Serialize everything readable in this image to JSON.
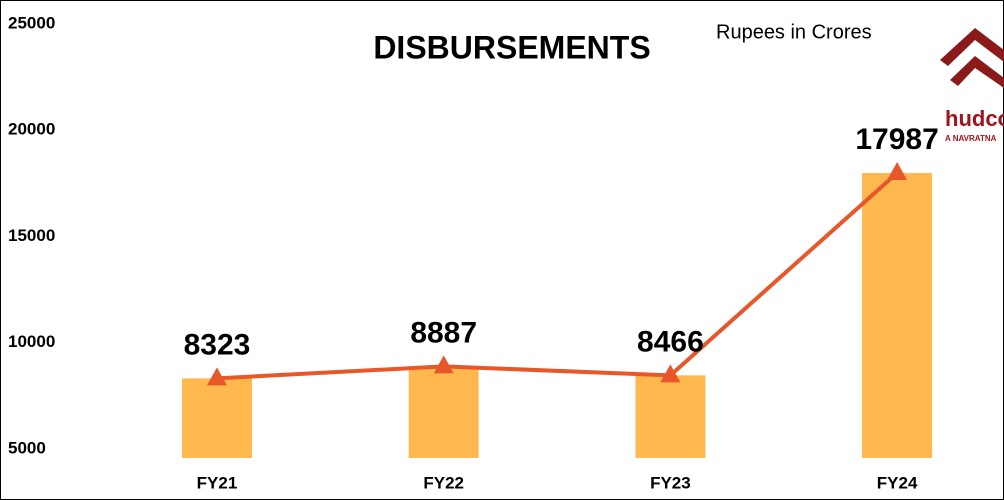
{
  "chart_data": {
    "type": "bar",
    "title": "DISBURSEMENTS",
    "subtitle": "Rupees in Crores",
    "categories": [
      "FY21",
      "FY22",
      "FY23",
      "FY24"
    ],
    "values": [
      8323,
      8887,
      8466,
      17987
    ],
    "color": "#ffb84d",
    "line_overlay": true,
    "line_color": "#e8572a",
    "ylim": [
      5000,
      25000
    ],
    "yticks": [
      5000,
      10000,
      15000,
      20000,
      25000
    ],
    "grid": false
  },
  "logo": {
    "text": "hudco",
    "tagline": "A NAVRATNA"
  }
}
